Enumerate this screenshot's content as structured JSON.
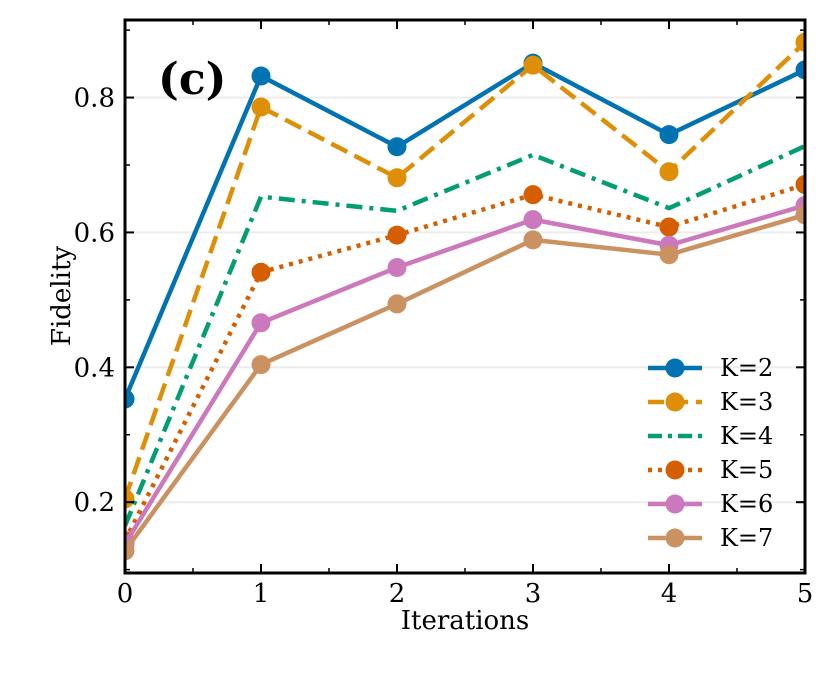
{
  "chart_data": {
    "type": "line",
    "panel_label": "(c)",
    "xlabel": "Iterations",
    "ylabel": "Fidelity",
    "x": [
      0,
      1,
      2,
      3,
      4,
      5
    ],
    "xlim": [
      0,
      5
    ],
    "ylim": [
      0.095,
      0.915
    ],
    "xticks": [
      0,
      1,
      2,
      3,
      4,
      5
    ],
    "yticks": [
      0.2,
      0.4,
      0.6,
      0.8
    ],
    "ytick_labels": [
      "0.2",
      "0.4",
      "0.6",
      "0.8"
    ],
    "grid": "horizontal",
    "legend_position": "lower-right",
    "series": [
      {
        "name": "K=2",
        "values": [
          0.353,
          0.832,
          0.727,
          0.851,
          0.745,
          0.841
        ],
        "color": "#0173b2",
        "dash": "solid",
        "marker": true
      },
      {
        "name": "K=3",
        "values": [
          0.205,
          0.786,
          0.681,
          0.848,
          0.69,
          0.882
        ],
        "color": "#de8f05",
        "dash": "dashed",
        "marker": true
      },
      {
        "name": "K=4",
        "values": [
          0.165,
          0.653,
          0.632,
          0.715,
          0.636,
          0.728
        ],
        "color": "#029e73",
        "dash": "dashdot",
        "marker": false
      },
      {
        "name": "K=5",
        "values": [
          0.143,
          0.541,
          0.596,
          0.656,
          0.608,
          0.671
        ],
        "color": "#d55e00",
        "dash": "dotted",
        "marker": true
      },
      {
        "name": "K=6",
        "values": [
          0.138,
          0.466,
          0.548,
          0.619,
          0.581,
          0.64
        ],
        "color": "#cc78bc",
        "dash": "solid",
        "marker": true
      },
      {
        "name": "K=7",
        "values": [
          0.128,
          0.404,
          0.494,
          0.589,
          0.567,
          0.626
        ],
        "color": "#ca9161",
        "dash": "solid",
        "marker": true
      }
    ]
  }
}
